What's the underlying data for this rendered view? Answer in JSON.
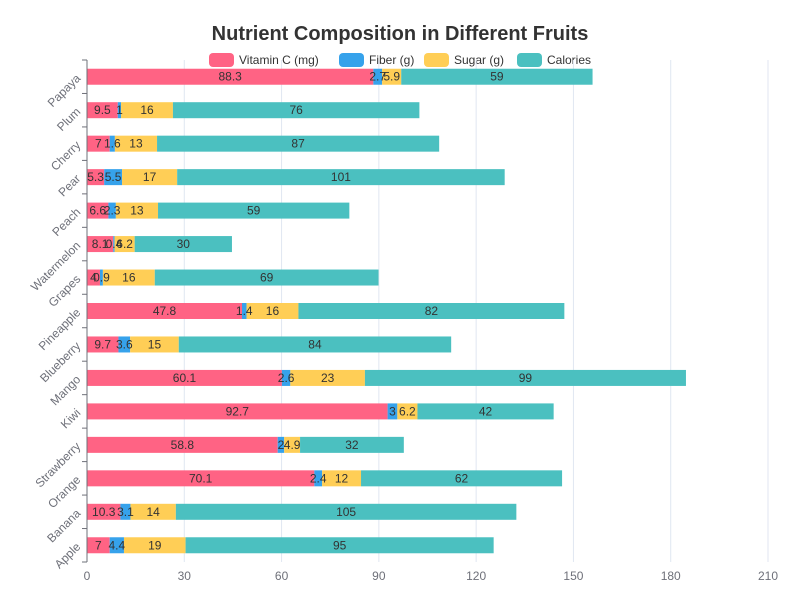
{
  "chart_data": {
    "type": "bar",
    "orientation": "horizontal",
    "stacked": true,
    "title": "Nutrient Composition in Different Fruits",
    "categories": [
      "Apple",
      "Banana",
      "Orange",
      "Strawberry",
      "Kiwi",
      "Mango",
      "Blueberry",
      "Pineapple",
      "Grapes",
      "Watermelon",
      "Peach",
      "Pear",
      "Cherry",
      "Plum",
      "Papaya"
    ],
    "series": [
      {
        "name": "Vitamin C (mg)",
        "color": "#ff6384",
        "values": [
          7,
          10.3,
          70.1,
          58.8,
          92.7,
          60.1,
          9.7,
          47.8,
          4,
          8.1,
          6.6,
          5.3,
          7,
          9.5,
          88.3
        ]
      },
      {
        "name": "Fiber (g)",
        "color": "#36a2eb",
        "values": [
          4.4,
          3.1,
          2.4,
          2,
          3,
          2.6,
          3.6,
          1.4,
          0.9,
          0.4,
          2.3,
          5.5,
          1.6,
          1,
          2.7
        ]
      },
      {
        "name": "Sugar (g)",
        "color": "#ffce56",
        "values": [
          19,
          14,
          12,
          4.9,
          6.2,
          23,
          15,
          16,
          16,
          6.2,
          13,
          17,
          13,
          16,
          5.9
        ]
      },
      {
        "name": "Calories",
        "color": "#4bc0c0",
        "values": [
          95,
          105,
          62,
          32,
          42,
          99,
          84,
          82,
          69,
          30,
          59,
          101,
          87,
          76,
          59
        ]
      }
    ],
    "xlim": [
      0,
      210
    ],
    "x_ticks": [
      0,
      30,
      60,
      90,
      120,
      150,
      180,
      210
    ],
    "legend_position": "top-center",
    "grid": true
  }
}
